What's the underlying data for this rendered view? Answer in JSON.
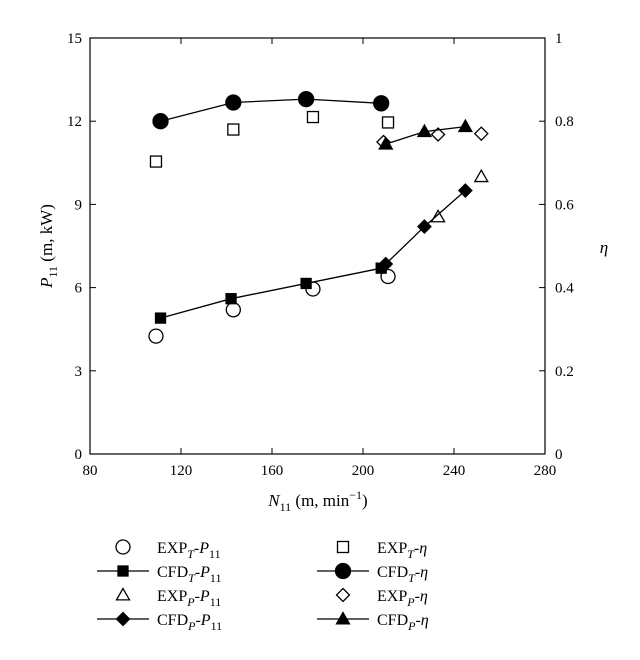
{
  "chart_data": {
    "type": "scatter",
    "x_axis": {
      "label_main": "N",
      "label_sub": "11",
      "label_units": " (m, min",
      "label_exp": "−1",
      "label_close": ")",
      "range": [
        80,
        280
      ],
      "ticks": [
        80,
        120,
        160,
        200,
        240,
        280
      ]
    },
    "y_left": {
      "label_main": "P",
      "label_sub": "11",
      "label_units": " (m, kW)",
      "range": [
        0,
        15
      ],
      "ticks": [
        0,
        3,
        6,
        9,
        12,
        15
      ]
    },
    "y_right": {
      "label": "η",
      "range": [
        0,
        1
      ],
      "ticks": [
        0,
        0.2,
        0.4,
        0.6,
        0.8,
        1
      ],
      "tick_labels": [
        "0",
        "0.2",
        "0.4",
        "0.6",
        "0.8",
        "1"
      ]
    },
    "grid": false,
    "legend_position": "bottom",
    "series": [
      {
        "legend_main": "EXP",
        "legend_sub": "T",
        "legend_tail": "-P",
        "legend_tail_sub": "11",
        "axis": "left",
        "marker": "circle-open",
        "line": false,
        "x": [
          109,
          143,
          178,
          211
        ],
        "y": [
          4.25,
          5.2,
          5.95,
          6.4
        ]
      },
      {
        "legend_main": "CFD",
        "legend_sub": "T",
        "legend_tail": "-P",
        "legend_tail_sub": "11",
        "axis": "left",
        "marker": "square-filled",
        "line": true,
        "x": [
          111,
          142,
          175,
          208
        ],
        "y": [
          4.9,
          5.6,
          6.15,
          6.7
        ]
      },
      {
        "legend_main": "EXP",
        "legend_sub": "P",
        "legend_tail": "-P",
        "legend_tail_sub": "11",
        "axis": "left",
        "marker": "triangle-open",
        "line": false,
        "x": [
          233,
          252
        ],
        "y": [
          8.55,
          10.0
        ]
      },
      {
        "legend_main": "CFD",
        "legend_sub": "P",
        "legend_tail": "-P",
        "legend_tail_sub": "11",
        "axis": "left",
        "marker": "diamond-filled",
        "line": true,
        "x": [
          210,
          227,
          245
        ],
        "y": [
          6.85,
          8.2,
          9.5
        ]
      },
      {
        "legend_main": "EXP",
        "legend_sub": "T",
        "legend_tail": "-η",
        "legend_tail_sub": "",
        "axis": "right",
        "marker": "square-open",
        "line": false,
        "x": [
          109,
          143,
          178,
          211
        ],
        "y": [
          0.703,
          0.78,
          0.81,
          0.797
        ]
      },
      {
        "legend_main": "CFD",
        "legend_sub": "T",
        "legend_tail": "-η",
        "legend_tail_sub": "",
        "axis": "right",
        "marker": "circle-filled",
        "line": true,
        "x": [
          111,
          143,
          175,
          208
        ],
        "y": [
          0.8,
          0.845,
          0.853,
          0.843
        ]
      },
      {
        "legend_main": "EXP",
        "legend_sub": "P",
        "legend_tail": "-η",
        "legend_tail_sub": "",
        "axis": "right",
        "marker": "diamond-open",
        "line": false,
        "x": [
          209,
          233,
          252
        ],
        "y": [
          0.75,
          0.768,
          0.77
        ]
      },
      {
        "legend_main": "CFD",
        "legend_sub": "P",
        "legend_tail": "-η",
        "legend_tail_sub": "",
        "axis": "right",
        "marker": "triangle-filled",
        "line": true,
        "x": [
          210,
          227,
          245
        ],
        "y": [
          0.745,
          0.775,
          0.787
        ]
      }
    ]
  }
}
